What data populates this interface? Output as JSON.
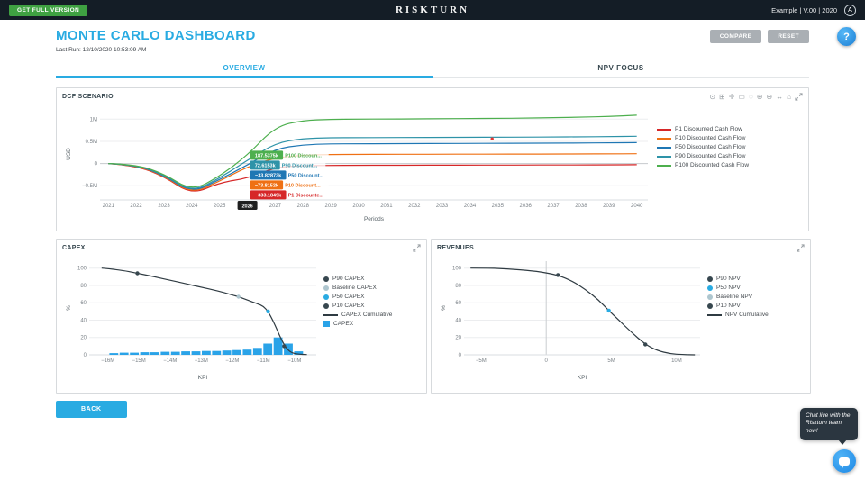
{
  "topbar": {
    "get_full_version": "GET FULL VERSION",
    "brand": "RISKTURN",
    "account": "Example | V.00 | 2020",
    "avatar_initial": "A"
  },
  "header": {
    "title": "MONTE CARLO DASHBOARD",
    "last_run": "Last Run: 12/10/2020 10:53:09 AM",
    "compare_label": "COMPARE",
    "reset_label": "RESET",
    "help_label": "?"
  },
  "tabs": [
    {
      "label": "OVERVIEW",
      "active": true
    },
    {
      "label": "NPV FOCUS",
      "active": false
    }
  ],
  "panels": {
    "dcf": {
      "title": "DCF SCENARIO"
    },
    "capex": {
      "title": "CAPEX"
    },
    "revenues": {
      "title": "REVENUES"
    }
  },
  "modebar_icons": [
    {
      "name": "camera-icon",
      "glyph": "⊙"
    },
    {
      "name": "zoom-icon",
      "glyph": "⊞"
    },
    {
      "name": "pan-icon",
      "glyph": "✛"
    },
    {
      "name": "box-select-icon",
      "glyph": "▭"
    },
    {
      "name": "lasso-select-icon",
      "glyph": "◌"
    },
    {
      "name": "zoom-in-icon",
      "glyph": "⊕"
    },
    {
      "name": "zoom-out-icon",
      "glyph": "⊖"
    },
    {
      "name": "autoscale-icon",
      "glyph": "↔"
    },
    {
      "name": "reset-axes-icon",
      "glyph": "⌂"
    },
    {
      "name": "fullscreen-icon",
      "glyph": "@expand"
    }
  ],
  "back_label": "BACK",
  "chat": {
    "message": "Chat live with the Riskturn team now!"
  },
  "colors": {
    "accent_blue": "#29abe2",
    "topbar_bg": "#141d26",
    "green_button": "#3fa142",
    "help_blue": "#1e88e5",
    "bars_blue": "#2aa3e8",
    "cumulative_dark": "#2f3b42"
  },
  "chart_data": [
    {
      "id": "dcf",
      "type": "line",
      "title": "DCF SCENARIO",
      "unit": "k USD",
      "xlabel": "Periods",
      "ylabel": "USD",
      "x_domain": [
        2020.7,
        2040.4
      ],
      "y_domain": [
        -820,
        1250
      ],
      "y_ticks": [
        {
          "v": -500,
          "l": "−0.5M"
        },
        {
          "v": 0,
          "l": "0"
        },
        {
          "v": 500,
          "l": "0.5M"
        },
        {
          "v": 1000,
          "l": "1M"
        }
      ],
      "x": [
        2021,
        2022,
        2023,
        2024,
        2025,
        2026,
        2027,
        2028,
        2029,
        2030,
        2031,
        2032,
        2033,
        2034,
        2035,
        2036,
        2037,
        2038,
        2039,
        2040
      ],
      "series": [
        {
          "name": "P1 Discounted Cash Flow",
          "color": "#d62728",
          "values": [
            0,
            -50,
            -290,
            -700,
            -430,
            -333.2,
            -85,
            -48,
            -42,
            -40,
            -39,
            -38,
            -37,
            -36,
            -35,
            -34,
            -33,
            -32,
            -30,
            -27
          ]
        },
        {
          "name": "P10 Discounted Cash Flow",
          "color": "#ef7014",
          "values": [
            0,
            -42,
            -276,
            -682,
            -396,
            -73.8,
            130,
            190,
            202,
            206,
            208,
            209,
            210,
            211,
            212,
            213,
            214,
            216,
            218,
            222
          ]
        },
        {
          "name": "P50 Discounted Cash Flow",
          "color": "#1f77b4",
          "values": [
            0,
            -35,
            -262,
            -663,
            -362,
            -33.8,
            330,
            425,
            442,
            446,
            448,
            450,
            452,
            454,
            456,
            458,
            460,
            463,
            466,
            470
          ]
        },
        {
          "name": "P90 Discounted Cash Flow",
          "color": "#2e93a8",
          "values": [
            0,
            -28,
            -248,
            -645,
            -330,
            72.6,
            460,
            565,
            580,
            584,
            586,
            588,
            590,
            592,
            594,
            596,
            599,
            603,
            608,
            615
          ]
        },
        {
          "name": "P100 Discounted Cash Flow",
          "color": "#4daf4e",
          "values": [
            0,
            -20,
            -230,
            -620,
            -290,
            187.5,
            830,
            975,
            995,
            1000,
            1003,
            1006,
            1010,
            1014,
            1018,
            1024,
            1032,
            1045,
            1060,
            1090
          ]
        }
      ],
      "legend": [
        {
          "label": "P1 Discounted Cash Flow",
          "color": "#d62728",
          "type": "line"
        },
        {
          "label": "P10 Discounted Cash Flow",
          "color": "#ef7014",
          "type": "line"
        },
        {
          "label": "P50 Discounted Cash Flow",
          "color": "#1f77b4",
          "type": "line"
        },
        {
          "label": "P90 Discounted Cash Flow",
          "color": "#2e93a8",
          "type": "line"
        },
        {
          "label": "P100 Discounted Cash Flow",
          "color": "#4daf4e",
          "type": "line"
        }
      ],
      "markers": [
        {
          "name": "hover-point",
          "x": 2034.8,
          "y": 555,
          "color": "#e53935",
          "r": 1.7
        }
      ],
      "hover": {
        "x": 2026,
        "axis_label": "2026",
        "labels": [
          {
            "value": "187.5375k",
            "trace": "P100 Discoun...",
            "y": 187.5,
            "color": "#4daf4e"
          },
          {
            "value": "72.6153k",
            "trace": "P90 Discount...",
            "y": 72.6,
            "color": "#2e93a8"
          },
          {
            "value": "−33.82873k",
            "trace": "P50 Discount...",
            "y": -33.8,
            "color": "#1f77b4"
          },
          {
            "value": "−73.8152k",
            "trace": "P10 Discount...",
            "y": -73.8,
            "color": "#ef7014"
          },
          {
            "value": "−333.1849k",
            "trace": "P1 Discounte...",
            "y": -333.2,
            "color": "#d62728"
          }
        ]
      }
    },
    {
      "id": "capex",
      "type": "histogram_cumulative",
      "title": "CAPEX",
      "unit": "M USD",
      "xlabel": "KPI",
      "ylabel": "%",
      "x_domain": [
        -16.6,
        -9.3
      ],
      "y_domain": [
        0,
        108
      ],
      "x_ticks": [
        {
          "v": -16,
          "l": "−16M"
        },
        {
          "v": -15,
          "l": "−15M"
        },
        {
          "v": -14,
          "l": "−14M"
        },
        {
          "v": -13,
          "l": "−13M"
        },
        {
          "v": -12,
          "l": "−12M"
        },
        {
          "v": -11,
          "l": "−11M"
        },
        {
          "v": -10,
          "l": "−10M"
        }
      ],
      "y_ticks": [
        {
          "v": 0,
          "l": "0"
        },
        {
          "v": 20,
          "l": "20"
        },
        {
          "v": 40,
          "l": "40"
        },
        {
          "v": 60,
          "l": "60"
        },
        {
          "v": 80,
          "l": "80"
        },
        {
          "v": 100,
          "l": "100"
        }
      ],
      "bars": {
        "name": "CAPEX",
        "color": "#2aa3e8",
        "width": 0.3,
        "x": [
          -15.8,
          -15.47,
          -15.14,
          -14.81,
          -14.48,
          -14.15,
          -13.82,
          -13.49,
          -13.16,
          -12.83,
          -12.5,
          -12.17,
          -11.84,
          -11.51,
          -11.18,
          -10.85,
          -10.52,
          -10.19,
          -9.86
        ],
        "heights": [
          2,
          2.5,
          2.5,
          3,
          3,
          3.5,
          3.5,
          4,
          4,
          4.5,
          4.5,
          5,
          5.5,
          6,
          8,
          13,
          20,
          13,
          4
        ]
      },
      "series": [
        {
          "name": "CAPEX Cumulative",
          "color": "#2f3b42",
          "points": [
            [
              -16.2,
              100
            ],
            [
              -15.6,
              98
            ],
            [
              -15.05,
              94
            ],
            [
              -14.5,
              90
            ],
            [
              -14,
              86
            ],
            [
              -13.5,
              82
            ],
            [
              -13,
              78
            ],
            [
              -12.5,
              74
            ],
            [
              -12,
              69
            ],
            [
              -11.8,
              67
            ],
            [
              -11.5,
              63
            ],
            [
              -11.2,
              59
            ],
            [
              -11,
              56
            ],
            [
              -10.85,
              50
            ],
            [
              -10.7,
              40
            ],
            [
              -10.55,
              28
            ],
            [
              -10.4,
              16
            ],
            [
              -10.25,
              7
            ],
            [
              -10.1,
              2.5
            ],
            [
              -9.9,
              0.8
            ],
            [
              -9.6,
              0.3
            ]
          ]
        }
      ],
      "markers": [
        {
          "name": "P90 CAPEX",
          "x": -15.05,
          "y": 94,
          "color": "#37474f"
        },
        {
          "name": "Baseline CAPEX",
          "x": -11.8,
          "y": 67,
          "color": "#aec6cf"
        },
        {
          "name": "P50 CAPEX",
          "x": -10.85,
          "y": 50,
          "color": "#29abe2"
        },
        {
          "name": "P10 CAPEX",
          "x": -10.33,
          "y": 10,
          "color": "#37474f"
        }
      ],
      "legend": [
        {
          "label": "P90 CAPEX",
          "color": "#37474f",
          "type": "marker"
        },
        {
          "label": "Baseline CAPEX",
          "color": "#aec6cf",
          "type": "marker"
        },
        {
          "label": "P50 CAPEX",
          "color": "#29abe2",
          "type": "marker"
        },
        {
          "label": "P10 CAPEX",
          "color": "#37474f",
          "type": "marker"
        },
        {
          "label": "CAPEX Cumulative",
          "color": "#2f3b42",
          "type": "line"
        },
        {
          "label": "CAPEX",
          "color": "#2aa3e8",
          "type": "square"
        }
      ]
    },
    {
      "id": "revenues",
      "type": "line_cumulative",
      "title": "REVENUES",
      "unit": "M USD",
      "xlabel": "KPI",
      "ylabel": "%",
      "x_domain": [
        -6.3,
        11.8
      ],
      "y_domain": [
        0,
        108
      ],
      "vline": 0,
      "x_ticks": [
        {
          "v": -5,
          "l": "−5M"
        },
        {
          "v": 0,
          "l": "0"
        },
        {
          "v": 5,
          "l": "5M"
        },
        {
          "v": 10,
          "l": "10M"
        }
      ],
      "y_ticks": [
        {
          "v": 0,
          "l": "0"
        },
        {
          "v": 20,
          "l": "20"
        },
        {
          "v": 40,
          "l": "40"
        },
        {
          "v": 60,
          "l": "60"
        },
        {
          "v": 80,
          "l": "80"
        },
        {
          "v": 100,
          "l": "100"
        }
      ],
      "series": [
        {
          "name": "NPV Cumulative",
          "color": "#2f3b42",
          "points": [
            [
              -5.8,
              100
            ],
            [
              -4.5,
              100
            ],
            [
              -3.5,
              99.5
            ],
            [
              -2.5,
              98.6
            ],
            [
              -1.5,
              97.4
            ],
            [
              -0.5,
              95.8
            ],
            [
              0.9,
              92
            ],
            [
              2,
              85
            ],
            [
              3,
              75.5
            ],
            [
              4,
              63.5
            ],
            [
              4.8,
              51
            ],
            [
              5.5,
              41
            ],
            [
              6.5,
              26.5
            ],
            [
              7.6,
              12
            ],
            [
              8.5,
              5
            ],
            [
              9.5,
              1.2
            ],
            [
              10.5,
              0.3
            ],
            [
              11.4,
              0
            ]
          ]
        }
      ],
      "markers": [
        {
          "name": "P90 NPV",
          "x": 0.9,
          "y": 92,
          "color": "#37474f"
        },
        {
          "name": "P50 NPV",
          "x": 4.8,
          "y": 51,
          "color": "#29abe2"
        },
        {
          "name": "P10 NPV",
          "x": 7.6,
          "y": 12,
          "color": "#37474f"
        }
      ],
      "legend": [
        {
          "label": "P90 NPV",
          "color": "#37474f",
          "type": "marker"
        },
        {
          "label": "P50 NPV",
          "color": "#29abe2",
          "type": "marker"
        },
        {
          "label": "Baseline NPV",
          "color": "#aec6cf",
          "type": "marker"
        },
        {
          "label": "P10 NPV",
          "color": "#37474f",
          "type": "marker"
        },
        {
          "label": "NPV Cumulative",
          "color": "#2f3b42",
          "type": "line"
        }
      ]
    }
  ]
}
